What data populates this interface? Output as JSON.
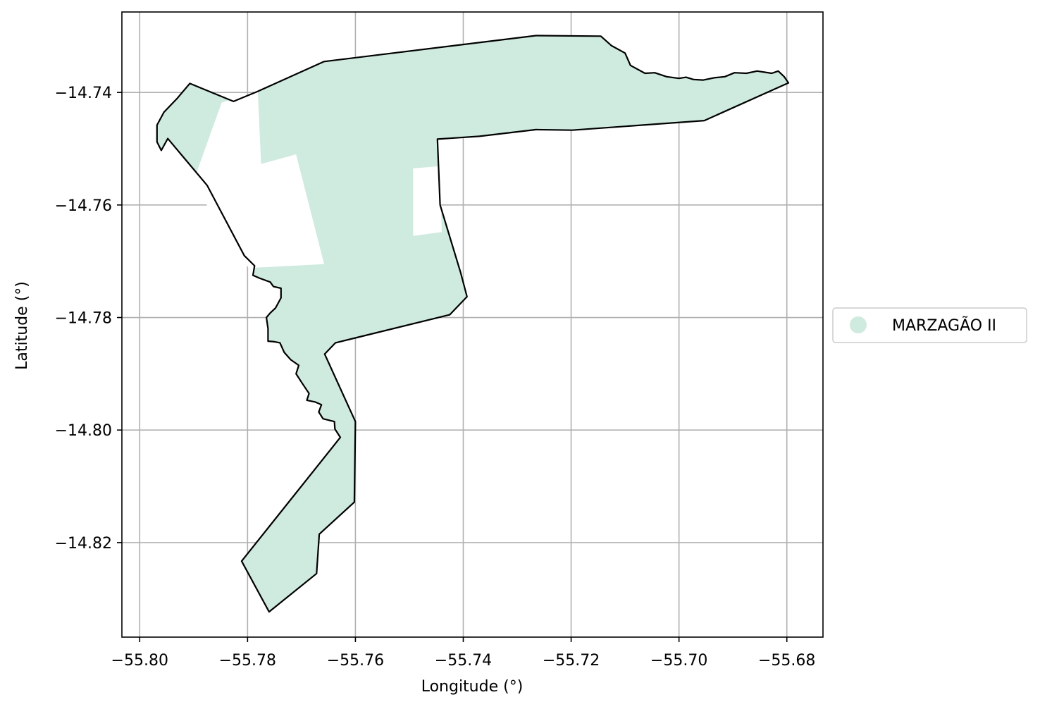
{
  "chart_data": {
    "type": "map",
    "xlabel": "Longitude (°)",
    "ylabel": "Latitude (°)",
    "xlim": [
      -55.8033,
      -55.6733
    ],
    "ylim": [
      -14.8368,
      -14.7257
    ],
    "x_ticks": [
      -55.8,
      -55.78,
      -55.76,
      -55.74,
      -55.72,
      -55.7,
      -55.68
    ],
    "x_tick_labels": [
      "−55.80",
      "−55.78",
      "−55.76",
      "−55.74",
      "−55.72",
      "−55.70",
      "−55.68"
    ],
    "y_ticks": [
      -14.74,
      -14.76,
      -14.78,
      -14.8,
      -14.82
    ],
    "y_tick_labels": [
      "−14.74",
      "−14.76",
      "−14.78",
      "−14.80",
      "−14.82"
    ],
    "grid": true,
    "legend_position": "right",
    "colors": {
      "fill": "#cfeade",
      "outline": "#000000",
      "grid": "#b0b0b0"
    },
    "series": [
      {
        "name": "MARZAGÃO II",
        "outline": [
          [
            -55.7781,
            -14.7398
          ],
          [
            -55.7658,
            -14.7345
          ],
          [
            -55.7265,
            -14.7299
          ],
          [
            -55.7145,
            -14.73
          ],
          [
            -55.7125,
            -14.7317
          ],
          [
            -55.71,
            -14.733
          ],
          [
            -55.709,
            -14.7352
          ],
          [
            -55.7063,
            -14.7366
          ],
          [
            -55.7045,
            -14.7365
          ],
          [
            -55.7023,
            -14.7372
          ],
          [
            -55.7,
            -14.7375
          ],
          [
            -55.6987,
            -14.7373
          ],
          [
            -55.6973,
            -14.7377
          ],
          [
            -55.6955,
            -14.7378
          ],
          [
            -55.6935,
            -14.7374
          ],
          [
            -55.6915,
            -14.7372
          ],
          [
            -55.6897,
            -14.7365
          ],
          [
            -55.6875,
            -14.7366
          ],
          [
            -55.6855,
            -14.7362
          ],
          [
            -55.6828,
            -14.7366
          ],
          [
            -55.6816,
            -14.7362
          ],
          [
            -55.6805,
            -14.7372
          ],
          [
            -55.6797,
            -14.7383
          ],
          [
            -55.6953,
            -14.745
          ],
          [
            -55.7198,
            -14.7467
          ],
          [
            -55.7265,
            -14.7466
          ],
          [
            -55.737,
            -14.7478
          ],
          [
            -55.7448,
            -14.7483
          ],
          [
            -55.7443,
            -14.76
          ],
          [
            -55.7405,
            -14.772
          ],
          [
            -55.7393,
            -14.7763
          ],
          [
            -55.7425,
            -14.7795
          ],
          [
            -55.7637,
            -14.7845
          ],
          [
            -55.7657,
            -14.7865
          ],
          [
            -55.76,
            -14.7985
          ],
          [
            -55.7602,
            -14.8128
          ],
          [
            -55.7667,
            -14.8185
          ],
          [
            -55.7672,
            -14.8255
          ],
          [
            -55.776,
            -14.8323
          ],
          [
            -55.7811,
            -14.8233
          ],
          [
            -55.7628,
            -14.8013
          ],
          [
            -55.7638,
            -14.7998
          ],
          [
            -55.7639,
            -14.7985
          ],
          [
            -55.766,
            -14.798
          ],
          [
            -55.7668,
            -14.7968
          ],
          [
            -55.7663,
            -14.7955
          ],
          [
            -55.7675,
            -14.795
          ],
          [
            -55.769,
            -14.7947
          ],
          [
            -55.7686,
            -14.7935
          ],
          [
            -55.77,
            -14.7915
          ],
          [
            -55.771,
            -14.79
          ],
          [
            -55.7705,
            -14.7885
          ],
          [
            -55.772,
            -14.7875
          ],
          [
            -55.7732,
            -14.7862
          ],
          [
            -55.774,
            -14.7845
          ],
          [
            -55.775,
            -14.7843
          ],
          [
            -55.7762,
            -14.7842
          ],
          [
            -55.7762,
            -14.782
          ],
          [
            -55.7765,
            -14.78
          ],
          [
            -55.7758,
            -14.7792
          ],
          [
            -55.7748,
            -14.7783
          ],
          [
            -55.7738,
            -14.7765
          ],
          [
            -55.7738,
            -14.7748
          ],
          [
            -55.7752,
            -14.7745
          ],
          [
            -55.7758,
            -14.7737
          ],
          [
            -55.7778,
            -14.773
          ],
          [
            -55.779,
            -14.7725
          ],
          [
            -55.7787,
            -14.7708
          ],
          [
            -55.7806,
            -14.769
          ],
          [
            -55.7875,
            -14.7565
          ],
          [
            -55.7948,
            -14.7482
          ],
          [
            -55.796,
            -14.7503
          ],
          [
            -55.7968,
            -14.7488
          ],
          [
            -55.7968,
            -14.7458
          ],
          [
            -55.7955,
            -14.7435
          ],
          [
            -55.793,
            -14.741
          ],
          [
            -55.7907,
            -14.7384
          ],
          [
            -55.7826,
            -14.7416
          ]
        ],
        "fill_holes": [
          [
            [
              -55.7781,
              -14.7398
            ],
            [
              -55.7775,
              -14.7527
            ],
            [
              -55.771,
              -14.751
            ],
            [
              -55.7658,
              -14.7705
            ],
            [
              -55.7798,
              -14.7712
            ],
            [
              -55.7902,
              -14.7562
            ],
            [
              -55.7848,
              -14.7418
            ]
          ],
          [
            [
              -55.7493,
              -14.7535
            ],
            [
              -55.7493,
              -14.7655
            ],
            [
              -55.744,
              -14.7648
            ],
            [
              -55.7443,
              -14.7531
            ]
          ]
        ]
      }
    ]
  }
}
